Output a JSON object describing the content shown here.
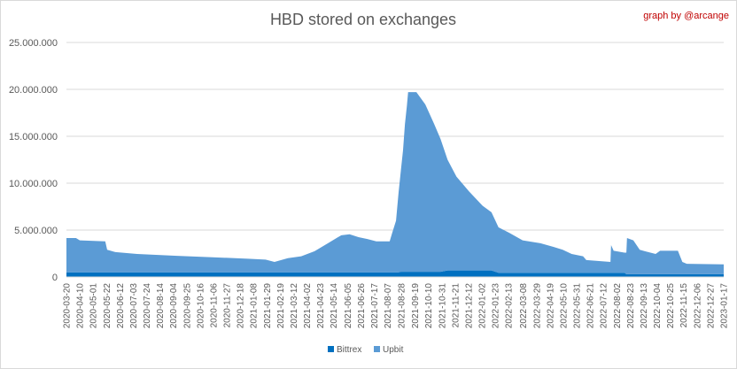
{
  "chart_data": {
    "type": "area",
    "stacked": true,
    "title": "HBD stored on exchanges",
    "annotation": "graph by @arcange",
    "xlabel": "",
    "ylabel": "",
    "ylim": [
      0,
      25000000
    ],
    "yticks": [
      0,
      5000000,
      10000000,
      15000000,
      20000000,
      25000000
    ],
    "ytick_labels": [
      "0",
      "5.000.000",
      "10.000.000",
      "15.000.000",
      "20.000.000",
      "25.000.000"
    ],
    "grid": true,
    "legend": "bottom",
    "colors": {
      "Bittrex": "#0070c0",
      "Upbit": "#5b9bd5",
      "annotation": "#c00000"
    },
    "xtick_labels": [
      "2020-03-20",
      "2020-04-10",
      "2020-05-01",
      "2020-05-22",
      "2020-06-12",
      "2020-07-03",
      "2020-07-24",
      "2020-08-14",
      "2020-09-04",
      "2020-09-25",
      "2020-10-16",
      "2020-11-06",
      "2020-11-27",
      "2020-12-18",
      "2021-01-08",
      "2021-01-29",
      "2021-02-19",
      "2021-03-12",
      "2021-04-02",
      "2021-04-23",
      "2021-05-14",
      "2021-06-05",
      "2021-06-26",
      "2021-07-17",
      "2021-08-07",
      "2021-08-28",
      "2021-09-19",
      "2021-10-10",
      "2021-10-31",
      "2021-11-21",
      "2021-12-12",
      "2022-01-02",
      "2022-01-23",
      "2022-02-13",
      "2022-03-08",
      "2022-03-29",
      "2022-04-19",
      "2022-05-10",
      "2022-05-31",
      "2022-06-21",
      "2022-07-12",
      "2022-08-02",
      "2022-08-23",
      "2022-09-13",
      "2022-10-04",
      "2022-10-25",
      "2022-11-15",
      "2022-12-06",
      "2022-12-27",
      "2023-01-17"
    ],
    "x": [
      "2020-03-20",
      "2020-04-04",
      "2020-04-10",
      "2020-05-20",
      "2020-05-23",
      "2020-06-05",
      "2020-07-09",
      "2020-09-10",
      "2020-11-05",
      "2020-12-30",
      "2021-01-27",
      "2021-02-10",
      "2021-03-03",
      "2021-03-24",
      "2021-04-14",
      "2021-05-05",
      "2021-05-26",
      "2021-06-08",
      "2021-06-22",
      "2021-07-06",
      "2021-07-20",
      "2021-08-10",
      "2021-08-14",
      "2021-08-20",
      "2021-08-24",
      "2021-08-28",
      "2021-08-31",
      "2021-09-03",
      "2021-09-06",
      "2021-09-08",
      "2021-09-21",
      "2021-10-05",
      "2021-10-19",
      "2021-10-29",
      "2021-11-09",
      "2021-11-23",
      "2021-12-13",
      "2022-01-03",
      "2022-01-17",
      "2022-01-28",
      "2022-02-14",
      "2022-03-07",
      "2022-04-04",
      "2022-04-25",
      "2022-05-09",
      "2022-05-23",
      "2022-06-10",
      "2022-06-15",
      "2022-07-23",
      "2022-07-24",
      "2022-07-28",
      "2022-08-14",
      "2022-08-17",
      "2022-08-18",
      "2022-08-28",
      "2022-09-07",
      "2022-09-15",
      "2022-10-02",
      "2022-10-09",
      "2022-11-06",
      "2022-11-13",
      "2022-11-20",
      "2023-01-17"
    ],
    "series": [
      {
        "name": "Bittrex",
        "values": [
          500000,
          500000,
          500000,
          500000,
          500000,
          500000,
          500000,
          500000,
          500000,
          500000,
          500000,
          500000,
          500000,
          500000,
          500000,
          500000,
          500000,
          500000,
          500000,
          500000,
          500000,
          500000,
          500000,
          500000,
          500000,
          550000,
          550000,
          550000,
          550000,
          550000,
          550000,
          550000,
          550000,
          550000,
          700000,
          700000,
          700000,
          700000,
          700000,
          450000,
          450000,
          450000,
          450000,
          450000,
          450000,
          450000,
          450000,
          450000,
          450000,
          450000,
          450000,
          450000,
          300000,
          300000,
          300000,
          300000,
          300000,
          300000,
          300000,
          300000,
          300000,
          300000,
          300000
        ]
      },
      {
        "name": "Upbit",
        "values": [
          3650000,
          3650000,
          3400000,
          3300000,
          2400000,
          2150000,
          1950000,
          1750000,
          1600000,
          1450000,
          1350000,
          1100000,
          1500000,
          1700000,
          2250000,
          3100000,
          3950000,
          4050000,
          3750000,
          3550000,
          3300000,
          3300000,
          4200000,
          5500000,
          8500000,
          11050000,
          12950000,
          15750000,
          17650000,
          19150000,
          19150000,
          17850000,
          15750000,
          14150000,
          11800000,
          10000000,
          8400000,
          6900000,
          6200000,
          4850000,
          4250000,
          3450000,
          3150000,
          2750000,
          2450000,
          2000000,
          1750000,
          1350000,
          1150000,
          2950000,
          2350000,
          2150000,
          2300000,
          3850000,
          3600000,
          2600000,
          2450000,
          2150000,
          2500000,
          2500000,
          1300000,
          1100000,
          1050000
        ]
      }
    ]
  }
}
